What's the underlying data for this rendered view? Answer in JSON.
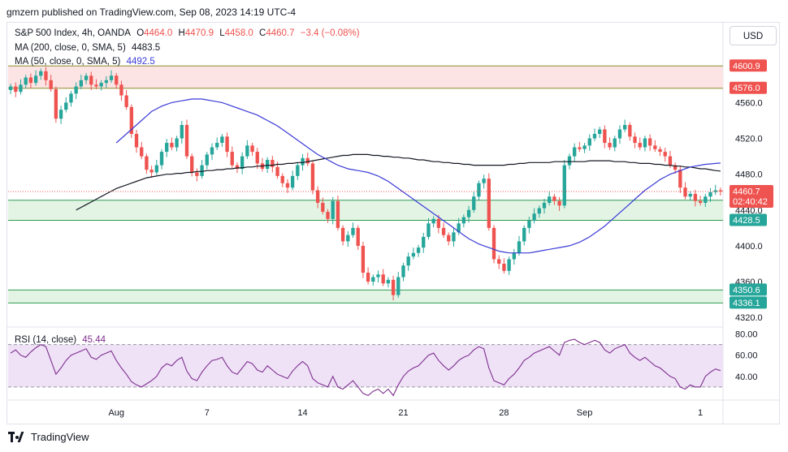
{
  "header": {
    "publisher_line": "gmzern published on TradingView.com, Sep 08, 2023 14:19 UTC-4"
  },
  "legend": {
    "symbol": "S&P 500 Index, 4h, OANDA",
    "o_label": "O",
    "o_value": "4464.0",
    "h_label": "H",
    "h_value": "4470.9",
    "l_label": "L",
    "l_value": "4458.0",
    "c_label": "C",
    "c_value": "4460.7",
    "change": "−3.4 (−0.08%)",
    "ma200_label": "MA (200, close, 0, SMA, 5)",
    "ma200_value": "4483.5",
    "ma50_label": "MA (50, close, 0, SMA, 5)",
    "ma50_value": "4492.5",
    "rsi_label": "RSI (14, close)",
    "rsi_value": "45.44"
  },
  "currency_button": "USD",
  "footer": {
    "brand": "TradingView"
  },
  "colors": {
    "up": "#26a69a",
    "down": "#ef5350",
    "ma200": "#131722",
    "ma50": "#3a3bd6",
    "rsi": "#7e2f8e",
    "zone_red": "#f8d7d9",
    "zone_green": "#d9f0dc"
  },
  "chart_data": {
    "type": "candlestick",
    "price_axis": {
      "ylim": [
        4312,
        4622
      ],
      "ticks": [
        "4320.0",
        "4360.0",
        "4400.0",
        "4440.0",
        "4480.0",
        "4520.0",
        "4560.0"
      ],
      "level_labels": [
        {
          "value": 4600.9,
          "text": "4600.9",
          "color": "#ef5350"
        },
        {
          "value": 4576.0,
          "text": "4576.0",
          "color": "#ef5350"
        },
        {
          "value": 4450.9,
          "text": "4450.9",
          "color": "#26a69a"
        },
        {
          "value": 4428.5,
          "text": "4428.5",
          "color": "#26a69a"
        },
        {
          "value": 4350.6,
          "text": "4350.6",
          "color": "#26a69a"
        },
        {
          "value": 4336.1,
          "text": "4336.1",
          "color": "#26a69a"
        }
      ],
      "last_price": {
        "value": 4460.7,
        "text": "4460.7",
        "countdown": "02:40:42",
        "color": "#ef5350"
      }
    },
    "zones": [
      {
        "name": "resistance",
        "from": 4576.0,
        "to": 4600.9,
        "color": "#fce4e4",
        "border": "#8b8b2f"
      },
      {
        "name": "support",
        "from": 4428.5,
        "to": 4450.9,
        "color": "#e3f4e5",
        "border": "#2e9d50"
      },
      {
        "name": "support",
        "from": 4336.1,
        "to": 4350.6,
        "color": "#e3f4e5",
        "border": "#2e9d50"
      }
    ],
    "x_ticks": [
      {
        "bar": 21,
        "label": "Aug"
      },
      {
        "bar": 39,
        "label": "7"
      },
      {
        "bar": 58,
        "label": "14"
      },
      {
        "bar": 78,
        "label": "21"
      },
      {
        "bar": 98,
        "label": "28"
      },
      {
        "bar": 114,
        "label": "Sep"
      },
      {
        "bar": 137,
        "label": "1"
      }
    ],
    "close": [
      4578,
      4572,
      4580,
      4588,
      4582,
      4590,
      4595,
      4585,
      4575,
      4542,
      4552,
      4560,
      4570,
      4578,
      4585,
      4590,
      4580,
      4578,
      4582,
      4585,
      4590,
      4580,
      4568,
      4555,
      4525,
      4510,
      4500,
      4485,
      4482,
      4490,
      4505,
      4515,
      4510,
      4520,
      4535,
      4500,
      4482,
      4478,
      4490,
      4502,
      4510,
      4515,
      4522,
      4505,
      4490,
      4486,
      4500,
      4512,
      4505,
      4492,
      4486,
      4496,
      4488,
      4478,
      4470,
      4465,
      4478,
      4490,
      4498,
      4492,
      4462,
      4448,
      4438,
      4430,
      4450,
      4420,
      4405,
      4412,
      4420,
      4400,
      4370,
      4360,
      4365,
      4368,
      4358,
      4362,
      4345,
      4365,
      4378,
      4388,
      4392,
      4398,
      4410,
      4425,
      4430,
      4420,
      4412,
      4405,
      4415,
      4425,
      4432,
      4440,
      4455,
      4470,
      4475,
      4420,
      4385,
      4380,
      4372,
      4385,
      4392,
      4405,
      4420,
      4428,
      4436,
      4442,
      4448,
      4455,
      4450,
      4445,
      4490,
      4500,
      4510,
      4508,
      4512,
      4520,
      4525,
      4530,
      4515,
      4510,
      4520,
      4530,
      4535,
      4522,
      4515,
      4510,
      4520,
      4512,
      4508,
      4505,
      4500,
      4490,
      4485,
      4465,
      4455,
      4458,
      4450,
      4448,
      4455,
      4460,
      4462,
      4460.7
    ],
    "ma200": [
      4440,
      4443,
      4446,
      4449,
      4452,
      4455,
      4458,
      4461,
      4464,
      4466,
      4468,
      4470,
      4472,
      4474,
      4476,
      4477,
      4478,
      4479,
      4480,
      4480,
      4481,
      4481,
      4482,
      4482,
      4483,
      4483,
      4484,
      4484,
      4485,
      4485,
      4486,
      4486,
      4487,
      4487,
      4488,
      4488,
      4489,
      4489,
      4490,
      4490,
      4491,
      4491,
      4492,
      4492,
      4493,
      4493,
      4494,
      4495,
      4496,
      4497,
      4498,
      4499,
      4500,
      4501,
      4501,
      4502,
      4502,
      4502,
      4502,
      4501,
      4501,
      4500,
      4500,
      4499,
      4499,
      4498,
      4498,
      4497,
      4496,
      4496,
      4495,
      4494,
      4494,
      4493,
      4493,
      4492,
      4492,
      4491,
      4491,
      4490,
      4490,
      4490,
      4490,
      4490,
      4490,
      4490,
      4491,
      4491,
      4492,
      4492,
      4493,
      4493,
      4493,
      4493,
      4493,
      4494,
      4494,
      4494,
      4494,
      4494,
      4494,
      4494,
      4495,
      4495,
      4495,
      4495,
      4495,
      4494,
      4494,
      4494,
      4493,
      4493,
      4492,
      4492,
      4492,
      4491,
      4491,
      4490,
      4490,
      4489,
      4489,
      4488,
      4488,
      4487,
      4486,
      4486,
      4485,
      4484,
      4483.5
    ],
    "ma50": [
      4515,
      4520,
      4525,
      4530,
      4535,
      4540,
      4545,
      4550,
      4553,
      4556,
      4558,
      4560,
      4561,
      4562,
      4563,
      4564,
      4564,
      4564,
      4563,
      4562,
      4561,
      4560,
      4558,
      4556,
      4554,
      4552,
      4550,
      4548,
      4546,
      4543,
      4540,
      4537,
      4534,
      4530,
      4526,
      4522,
      4518,
      4514,
      4510,
      4506,
      4502,
      4499,
      4496,
      4493,
      4490,
      4488,
      4486,
      4485,
      4484,
      4483,
      4482,
      4480,
      4478,
      4475,
      4472,
      4468,
      4464,
      4460,
      4456,
      4452,
      4448,
      4444,
      4440,
      4436,
      4432,
      4428,
      4424,
      4420,
      4416,
      4412,
      4408,
      4405,
      4402,
      4400,
      4398,
      4396,
      4394,
      4393,
      4392,
      4392,
      4392,
      4392,
      4392,
      4393,
      4394,
      4395,
      4396,
      4397,
      4398,
      4399,
      4400,
      4402,
      4404,
      4407,
      4410,
      4414,
      4418,
      4422,
      4427,
      4432,
      4437,
      4442,
      4447,
      4452,
      4457,
      4462,
      4466,
      4470,
      4474,
      4477,
      4480,
      4482,
      4484,
      4486,
      4488,
      4489,
      4490,
      4491,
      4491.5,
      4492,
      4492.5
    ],
    "rsi": {
      "ylim": [
        20,
        85
      ],
      "ticks": [
        "40.00",
        "60.00",
        "80.00"
      ],
      "overbought": 70,
      "oversold": 30,
      "values": [
        62,
        65,
        60,
        58,
        63,
        67,
        70,
        68,
        55,
        42,
        48,
        55,
        60,
        62,
        64,
        66,
        58,
        56,
        60,
        62,
        64,
        55,
        48,
        42,
        35,
        32,
        30,
        33,
        36,
        40,
        48,
        52,
        50,
        55,
        58,
        45,
        38,
        36,
        44,
        50,
        55,
        56,
        58,
        50,
        44,
        42,
        48,
        54,
        52,
        46,
        44,
        50,
        46,
        42,
        40,
        38,
        45,
        50,
        54,
        50,
        38,
        34,
        32,
        30,
        40,
        30,
        28,
        32,
        36,
        30,
        24,
        22,
        26,
        28,
        24,
        28,
        22,
        32,
        40,
        45,
        48,
        50,
        55,
        60,
        62,
        55,
        50,
        46,
        50,
        55,
        58,
        60,
        65,
        68,
        66,
        48,
        36,
        34,
        32,
        38,
        42,
        48,
        55,
        58,
        62,
        64,
        66,
        68,
        64,
        60,
        72,
        74,
        75,
        72,
        70,
        72,
        74,
        72,
        65,
        62,
        66,
        68,
        70,
        62,
        58,
        55,
        58,
        54,
        50,
        48,
        44,
        40,
        38,
        30,
        28,
        32,
        30,
        30,
        40,
        44,
        47,
        45.44
      ]
    }
  }
}
